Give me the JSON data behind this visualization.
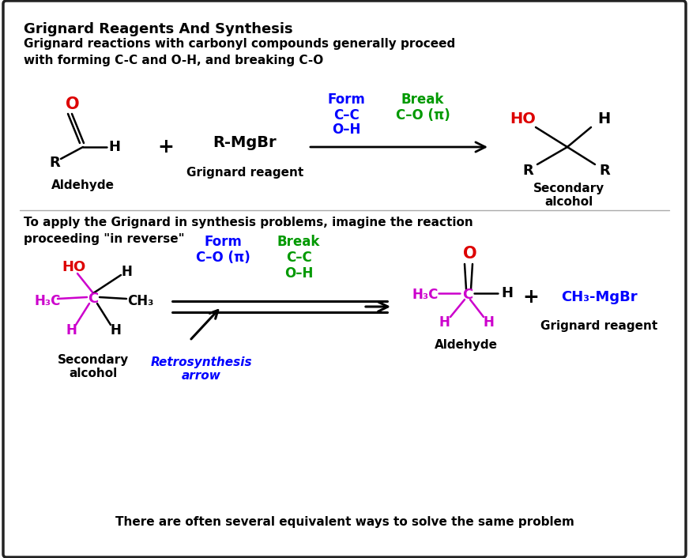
{
  "title": "Grignard Reagents And Synthesis",
  "subtitle": "Grignard reactions with carbonyl compounds generally proceed\nwith forming C-C and O-H, and breaking C-O",
  "bg_color": "#ffffff",
  "border_color": "#222222",
  "top_section": {
    "aldehyde_label": "Aldehyde",
    "grignard_label": "Grignard reagent",
    "product_label": "Secondary\nalcohol",
    "reagent_text": "R-MgBr",
    "form_label": "Form",
    "break_label": "Break",
    "form_color": "#0000ff",
    "break_color": "#009900"
  },
  "bottom_section": {
    "intro_text": "To apply the Grignard in synthesis problems, imagine the reaction\nproceeding \"in reverse\"",
    "sec_alcohol_label": "Secondary\nalcohol",
    "aldehyde_label": "Aldehyde",
    "grignard_label": "Grignard reagent",
    "grignard_text": "CH₃-MgBr",
    "form_label": "Form",
    "break_label": "Break",
    "form_color": "#0000ff",
    "break_color": "#009900",
    "retro_label": "Retrosynthesis\narrow",
    "retro_color": "#0000ff"
  },
  "footer": "There are often several equivalent ways to solve the same problem",
  "magenta": "#cc00cc",
  "red": "#dd0000",
  "blue": "#0000ff",
  "green": "#009900",
  "black": "#000000"
}
